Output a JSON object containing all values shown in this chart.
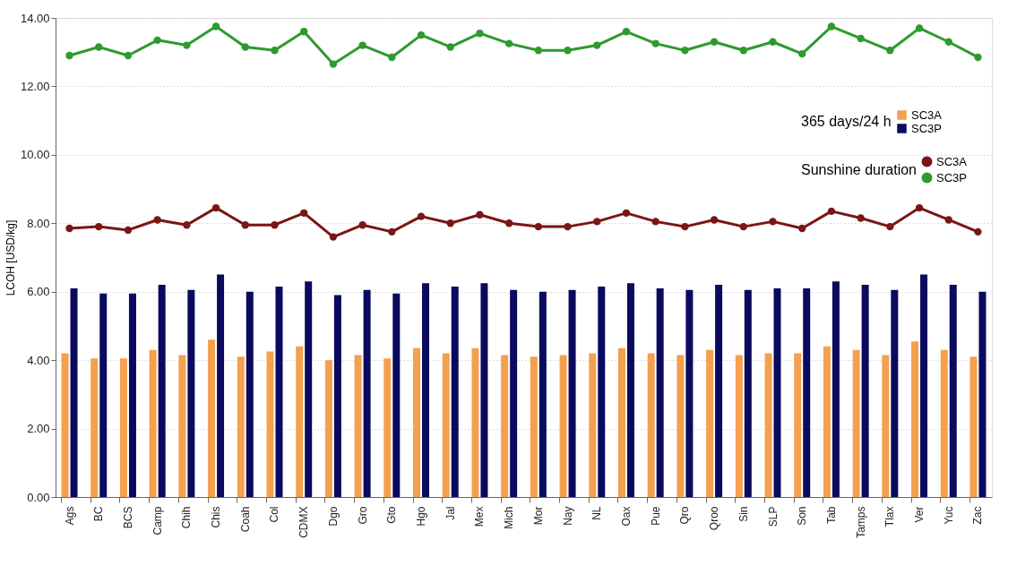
{
  "chart_data": {
    "type": "bar",
    "ylabel": "LCOH [USD/kg]",
    "categories": [
      "Ags",
      "BC",
      "BCS",
      "Camp",
      "Chih",
      "Chis",
      "Coah",
      "Col",
      "CDMX",
      "Dgo",
      "Gro",
      "Gto",
      "Hgo",
      "Jal",
      "Mex",
      "Mich",
      "Mor",
      "Nay",
      "NL",
      "Oax",
      "Pue",
      "Qro",
      "Qroo",
      "Sin",
      "SLP",
      "Son",
      "Tab",
      "Tamps",
      "Tlax",
      "Ver",
      "Yuc",
      "Zac"
    ],
    "series": [
      {
        "name": "SC3A",
        "color": "#f4a04e",
        "values": [
          4.2,
          4.05,
          4.05,
          4.3,
          4.15,
          4.6,
          4.1,
          4.25,
          4.4,
          4.0,
          4.15,
          4.05,
          4.35,
          4.2,
          4.35,
          4.15,
          4.1,
          4.15,
          4.2,
          4.35,
          4.2,
          4.15,
          4.3,
          4.15,
          4.2,
          4.2,
          4.4,
          4.3,
          4.15,
          4.55,
          4.3,
          4.1
        ]
      },
      {
        "name": "SC3P",
        "color": "#0a0a5e",
        "values": [
          6.1,
          5.95,
          5.95,
          6.2,
          6.05,
          6.5,
          6.0,
          6.15,
          6.3,
          5.9,
          6.05,
          5.95,
          6.25,
          6.15,
          6.25,
          6.05,
          6.0,
          6.05,
          6.15,
          6.25,
          6.1,
          6.05,
          6.2,
          6.05,
          6.1,
          6.1,
          6.3,
          6.2,
          6.05,
          6.5,
          6.2,
          6.0
        ]
      },
      {
        "name": "SC3A",
        "type": "line",
        "color": "#7a1616",
        "values": [
          7.85,
          7.9,
          7.8,
          8.1,
          7.95,
          8.45,
          7.95,
          7.95,
          8.3,
          7.6,
          7.95,
          7.75,
          8.2,
          8.0,
          8.25,
          8.0,
          7.9,
          7.9,
          8.05,
          8.3,
          8.05,
          7.9,
          8.1,
          7.9,
          8.05,
          7.85,
          8.35,
          8.15,
          7.9,
          8.45,
          8.1,
          7.75
        ]
      },
      {
        "name": "SC3P",
        "type": "line",
        "color": "#2e9a2e",
        "values": [
          12.9,
          13.15,
          12.9,
          13.35,
          13.2,
          13.75,
          13.15,
          13.05,
          13.6,
          12.65,
          13.2,
          12.85,
          13.5,
          13.15,
          13.55,
          13.25,
          13.05,
          13.05,
          13.2,
          13.6,
          13.25,
          13.05,
          13.3,
          13.05,
          13.3,
          12.95,
          13.75,
          13.4,
          13.05,
          13.7,
          13.3,
          12.85
        ]
      }
    ],
    "ylim": [
      0,
      14
    ],
    "yticks": [
      {
        "value": 0,
        "label": "0.00"
      },
      {
        "value": 2,
        "label": "2.00"
      },
      {
        "value": 4,
        "label": "4.00"
      },
      {
        "value": 6,
        "label": "6.00"
      },
      {
        "value": 8,
        "label": "8.00"
      },
      {
        "value": 10,
        "label": "10.00"
      },
      {
        "value": 12,
        "label": "12.00"
      },
      {
        "value": 14,
        "label": "14.00"
      }
    ],
    "annotations": [
      "365 days/24 h",
      "Sunshine duration"
    ],
    "legend": "right",
    "marker": "circle",
    "line_style": "solid",
    "grid": "y"
  }
}
